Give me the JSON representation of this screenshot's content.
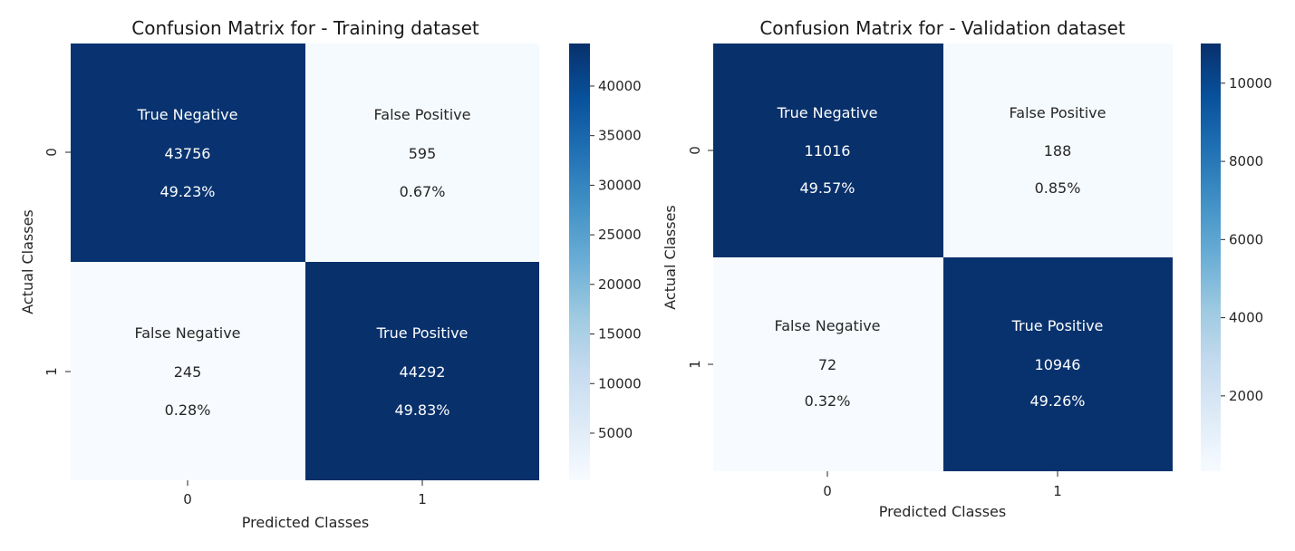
{
  "chart_data": [
    {
      "type": "heatmap",
      "title": "Confusion Matrix for - Training dataset",
      "xlabel": "Predicted Classes",
      "ylabel": "Actual Classes",
      "x_tick_labels": [
        "0",
        "1"
      ],
      "y_tick_labels": [
        "0",
        "1"
      ],
      "cells": [
        [
          {
            "name": "True Negative",
            "count": "43756",
            "percent": "49.23%",
            "value": 43756
          },
          {
            "name": "False Positive",
            "count": "595",
            "percent": "0.67%",
            "value": 595
          }
        ],
        [
          {
            "name": "False Negative",
            "count": "245",
            "percent": "0.28%",
            "value": 245
          },
          {
            "name": "True Positive",
            "count": "44292",
            "percent": "49.83%",
            "value": 44292
          }
        ]
      ],
      "colorbar": {
        "vmin": 245,
        "vmax": 44292,
        "ticks": [
          5000,
          10000,
          15000,
          20000,
          25000,
          30000,
          35000,
          40000
        ],
        "colormap": "Blues"
      }
    },
    {
      "type": "heatmap",
      "title": "Confusion Matrix for - Validation dataset",
      "xlabel": "Predicted Classes",
      "ylabel": "Actual Classes",
      "x_tick_labels": [
        "0",
        "1"
      ],
      "y_tick_labels": [
        "0",
        "1"
      ],
      "cells": [
        [
          {
            "name": "True Negative",
            "count": "11016",
            "percent": "49.57%",
            "value": 11016
          },
          {
            "name": "False Positive",
            "count": "188",
            "percent": "0.85%",
            "value": 188
          }
        ],
        [
          {
            "name": "False Negative",
            "count": "72",
            "percent": "0.32%",
            "value": 72
          },
          {
            "name": "True Positive",
            "count": "10946",
            "percent": "49.26%",
            "value": 10946
          }
        ]
      ],
      "colorbar": {
        "vmin": 72,
        "vmax": 11016,
        "ticks": [
          2000,
          4000,
          6000,
          8000,
          10000
        ],
        "colormap": "Blues"
      }
    }
  ],
  "colors": {
    "dark": "#08306b",
    "light": "#f7fbff",
    "text_on_dark": "#ffffff",
    "text_on_light": "#262626"
  }
}
